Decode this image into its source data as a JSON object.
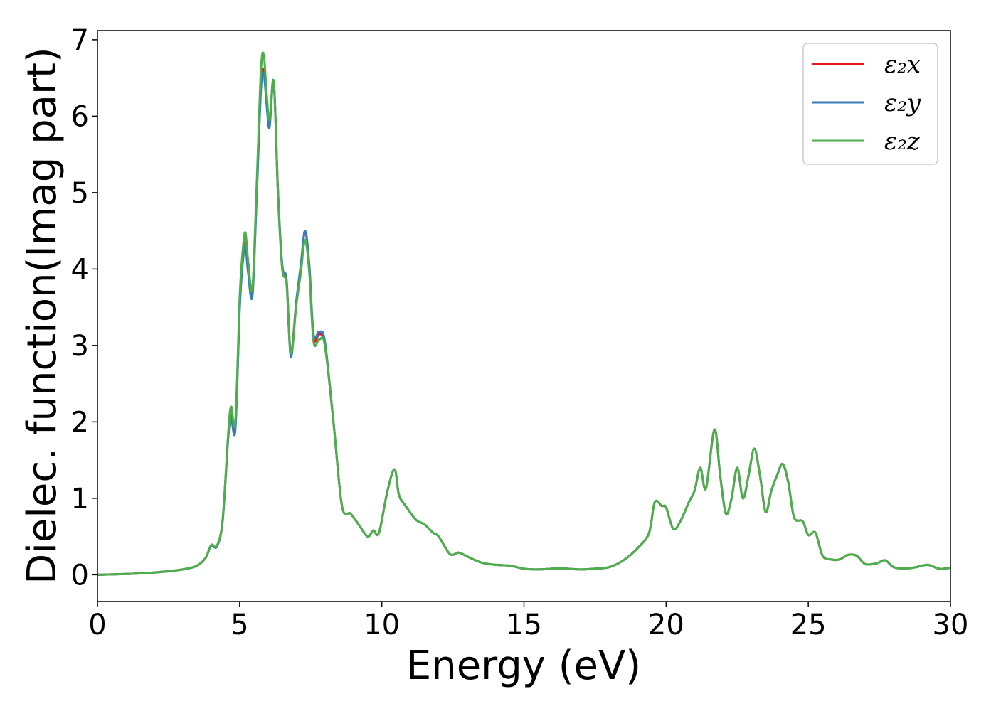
{
  "chart_data": {
    "type": "line",
    "xlabel": "Energy (eV)",
    "ylabel": "Dielec. function(Imag part)",
    "xlim": [
      0,
      30
    ],
    "ylim": [
      -0.35,
      7.12
    ],
    "xticks": [
      "0",
      "5",
      "10",
      "15",
      "20",
      "25",
      "30"
    ],
    "yticks": [
      "0",
      "1",
      "2",
      "3",
      "4",
      "5",
      "6",
      "7"
    ],
    "grid": false,
    "legend_position": "top-right",
    "x": [
      0,
      1,
      2,
      3,
      3.5,
      3.8,
      4.0,
      4.2,
      4.4,
      4.6,
      4.7,
      4.85,
      5.0,
      5.1,
      5.2,
      5.3,
      5.45,
      5.6,
      5.75,
      5.85,
      5.95,
      6.05,
      6.2,
      6.35,
      6.5,
      6.65,
      6.8,
      7.0,
      7.15,
      7.3,
      7.45,
      7.6,
      7.8,
      8.0,
      8.3,
      8.6,
      8.9,
      9.2,
      9.5,
      9.7,
      9.9,
      10.2,
      10.45,
      10.6,
      10.8,
      11.2,
      11.5,
      11.8,
      12.0,
      12.4,
      12.7,
      13.0,
      13.5,
      14.0,
      14.5,
      15.0,
      15.5,
      16.0,
      16.5,
      17.0,
      17.5,
      18.0,
      18.5,
      19.0,
      19.4,
      19.6,
      19.85,
      20.0,
      20.25,
      20.5,
      20.8,
      21.0,
      21.2,
      21.4,
      21.7,
      21.9,
      22.1,
      22.3,
      22.5,
      22.7,
      22.9,
      23.1,
      23.3,
      23.5,
      23.7,
      23.9,
      24.1,
      24.3,
      24.5,
      24.8,
      25.0,
      25.25,
      25.5,
      25.8,
      26.1,
      26.4,
      26.7,
      27.0,
      27.4,
      27.7,
      28.0,
      28.4,
      28.8,
      29.2,
      29.6,
      30.0
    ],
    "series": [
      {
        "name": "ε₂x",
        "color": "#e41a1c",
        "values": [
          0.0,
          0.01,
          0.03,
          0.07,
          0.12,
          0.22,
          0.38,
          0.37,
          0.7,
          1.8,
          2.1,
          1.95,
          3.5,
          4.1,
          4.35,
          4.0,
          3.7,
          5.0,
          6.4,
          6.6,
          6.2,
          5.9,
          6.45,
          5.0,
          4.0,
          3.85,
          2.9,
          3.6,
          4.0,
          4.5,
          4.0,
          3.1,
          3.15,
          3.0,
          2.0,
          0.9,
          0.8,
          0.65,
          0.5,
          0.58,
          0.55,
          1.1,
          1.38,
          1.05,
          0.92,
          0.72,
          0.66,
          0.55,
          0.5,
          0.27,
          0.29,
          0.24,
          0.16,
          0.13,
          0.12,
          0.08,
          0.07,
          0.08,
          0.08,
          0.07,
          0.08,
          0.1,
          0.19,
          0.35,
          0.55,
          0.95,
          0.9,
          0.88,
          0.6,
          0.7,
          0.95,
          1.1,
          1.4,
          1.13,
          1.9,
          1.3,
          0.8,
          1.0,
          1.4,
          1.0,
          1.3,
          1.65,
          1.3,
          0.82,
          1.1,
          1.3,
          1.45,
          1.2,
          0.75,
          0.7,
          0.52,
          0.55,
          0.25,
          0.2,
          0.2,
          0.26,
          0.25,
          0.14,
          0.15,
          0.19,
          0.1,
          0.08,
          0.1,
          0.13,
          0.08,
          0.09
        ]
      },
      {
        "name": "ε₂y",
        "color": "#377eb8",
        "values": [
          0.0,
          0.01,
          0.03,
          0.07,
          0.12,
          0.22,
          0.38,
          0.37,
          0.7,
          1.8,
          2.05,
          1.9,
          3.45,
          4.05,
          4.3,
          3.95,
          3.65,
          4.95,
          6.35,
          6.55,
          6.15,
          5.85,
          6.45,
          5.0,
          4.05,
          3.85,
          2.85,
          3.6,
          4.05,
          4.5,
          4.05,
          3.15,
          3.18,
          3.05,
          2.0,
          0.9,
          0.8,
          0.65,
          0.5,
          0.58,
          0.55,
          1.1,
          1.38,
          1.05,
          0.92,
          0.72,
          0.66,
          0.55,
          0.5,
          0.27,
          0.29,
          0.24,
          0.16,
          0.13,
          0.12,
          0.08,
          0.07,
          0.08,
          0.08,
          0.07,
          0.08,
          0.1,
          0.19,
          0.35,
          0.55,
          0.95,
          0.9,
          0.88,
          0.6,
          0.7,
          0.95,
          1.1,
          1.4,
          1.13,
          1.9,
          1.3,
          0.8,
          1.0,
          1.4,
          1.0,
          1.3,
          1.65,
          1.3,
          0.82,
          1.1,
          1.3,
          1.45,
          1.2,
          0.75,
          0.7,
          0.52,
          0.55,
          0.25,
          0.2,
          0.2,
          0.26,
          0.25,
          0.14,
          0.15,
          0.19,
          0.1,
          0.08,
          0.1,
          0.13,
          0.08,
          0.09
        ]
      },
      {
        "name": "ε₂z",
        "color": "#4daf4a",
        "values": [
          0.0,
          0.01,
          0.03,
          0.07,
          0.12,
          0.22,
          0.39,
          0.38,
          0.72,
          1.85,
          2.2,
          2.0,
          3.6,
          4.2,
          4.48,
          4.1,
          3.75,
          5.1,
          6.6,
          6.8,
          6.3,
          5.95,
          6.45,
          4.95,
          4.0,
          3.8,
          2.9,
          3.55,
          3.95,
          4.38,
          3.95,
          3.05,
          3.08,
          3.0,
          2.0,
          0.9,
          0.8,
          0.65,
          0.5,
          0.58,
          0.55,
          1.1,
          1.38,
          1.05,
          0.92,
          0.72,
          0.66,
          0.55,
          0.5,
          0.27,
          0.29,
          0.24,
          0.16,
          0.13,
          0.12,
          0.08,
          0.07,
          0.08,
          0.08,
          0.07,
          0.08,
          0.1,
          0.19,
          0.35,
          0.55,
          0.95,
          0.9,
          0.88,
          0.6,
          0.7,
          0.95,
          1.1,
          1.4,
          1.13,
          1.9,
          1.3,
          0.8,
          1.0,
          1.4,
          1.0,
          1.3,
          1.65,
          1.3,
          0.82,
          1.1,
          1.3,
          1.45,
          1.2,
          0.75,
          0.7,
          0.52,
          0.55,
          0.25,
          0.2,
          0.2,
          0.26,
          0.25,
          0.14,
          0.15,
          0.19,
          0.1,
          0.08,
          0.1,
          0.13,
          0.08,
          0.09
        ]
      }
    ]
  }
}
